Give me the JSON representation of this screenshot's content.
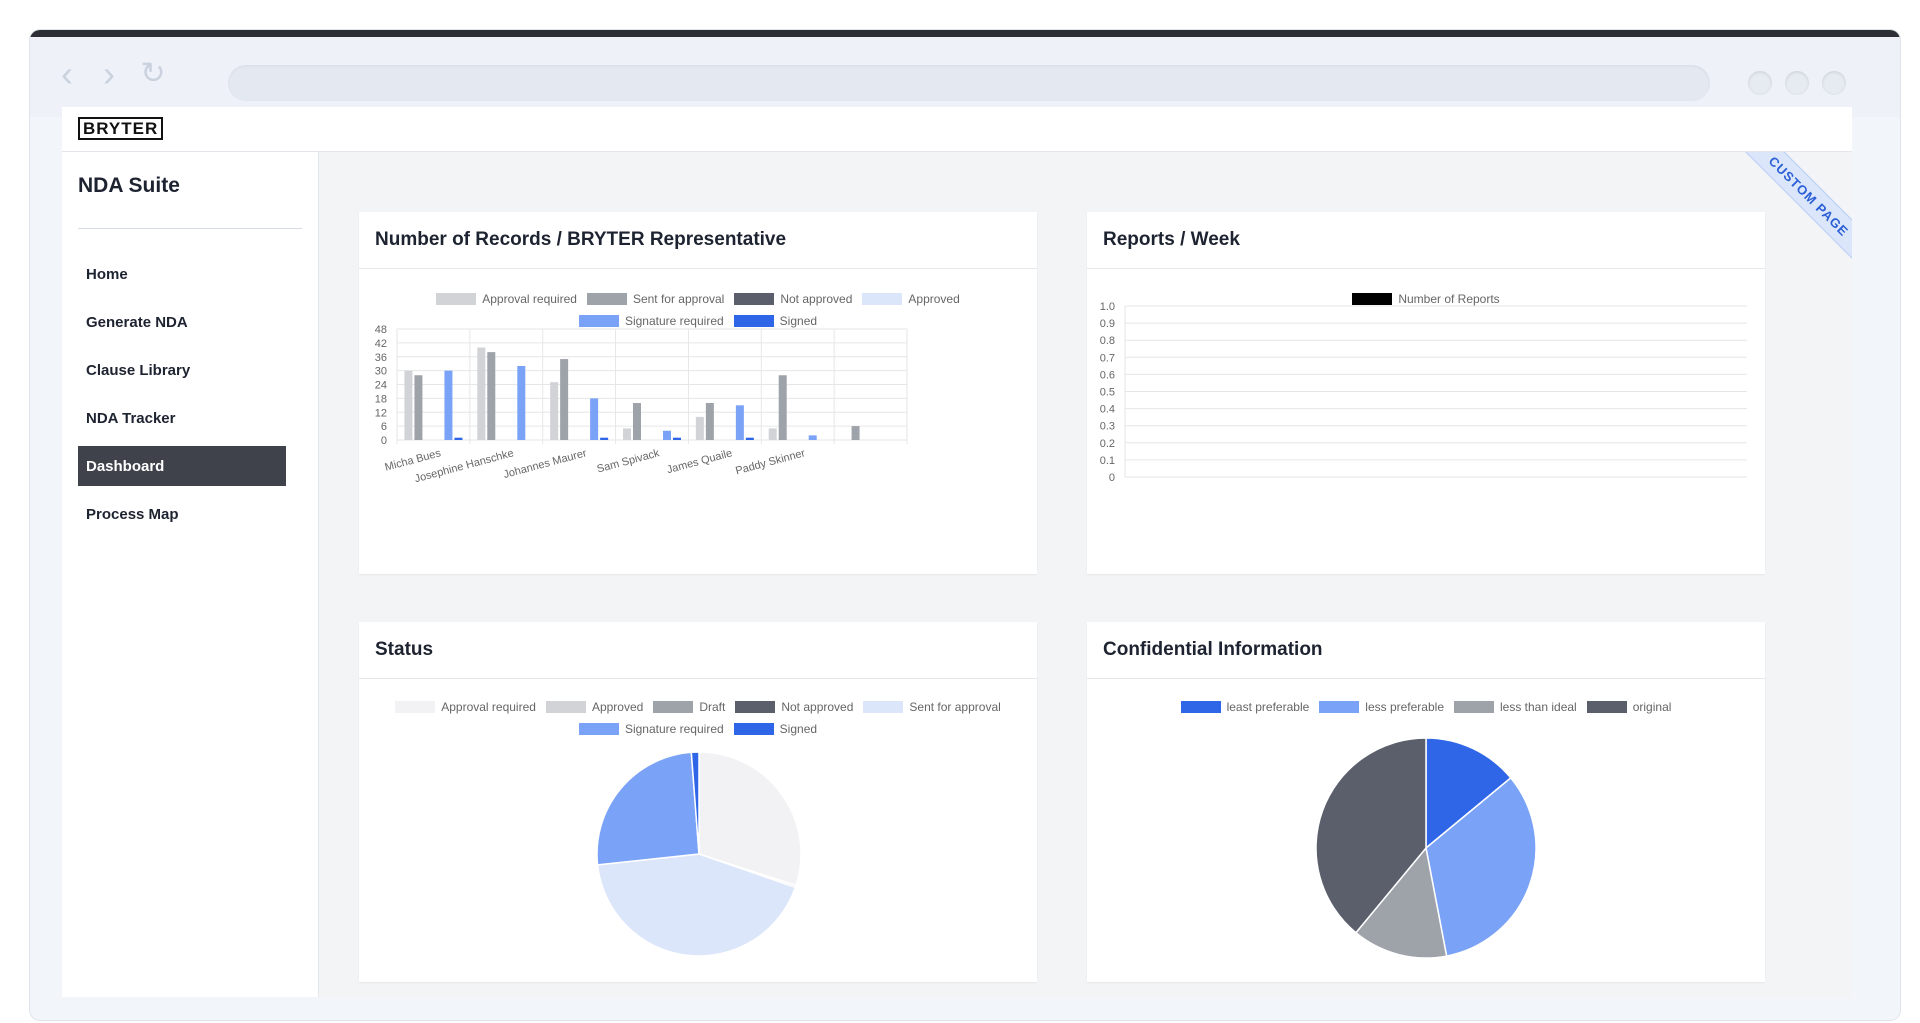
{
  "app": {
    "logo": "BRYTER",
    "suite_title": "NDA Suite",
    "ribbon": "CUSTOM PAGE"
  },
  "sidebar": {
    "items": [
      {
        "label": "Home",
        "active": false
      },
      {
        "label": "Generate NDA",
        "active": false
      },
      {
        "label": "Clause Library",
        "active": false
      },
      {
        "label": "NDA Tracker",
        "active": false
      },
      {
        "label": "Dashboard",
        "active": true
      },
      {
        "label": "Process Map",
        "active": false
      }
    ]
  },
  "cards": {
    "records": {
      "title": "Number of Records / BRYTER Representative"
    },
    "reports": {
      "title": "Reports / Week"
    },
    "status": {
      "title": "Status"
    },
    "confidential": {
      "title": "Confidential Information"
    }
  },
  "chart_data": [
    {
      "type": "bar",
      "categories": [
        "Micha Bues",
        "Josephine Hanschke",
        "Johannes Maurer",
        "Sam Spivack",
        "James Quaile",
        "Paddy Skinner",
        ""
      ],
      "series": [
        {
          "name": "Approval required",
          "color": "#d1d3d7",
          "values": [
            30,
            40,
            25,
            5,
            10,
            5,
            0
          ]
        },
        {
          "name": "Sent for approval",
          "color": "#9ea2a9",
          "values": [
            28,
            38,
            35,
            16,
            16,
            28,
            6
          ]
        },
        {
          "name": "Not approved",
          "color": "#5a5f6b",
          "values": [
            0,
            0,
            0,
            0,
            0,
            0,
            0
          ]
        },
        {
          "name": "Approved",
          "color": "#dce6fb",
          "values": [
            0,
            0,
            0,
            0,
            0,
            0,
            0
          ]
        },
        {
          "name": "Signature required",
          "color": "#7aa2f7",
          "values": [
            30,
            32,
            18,
            4,
            15,
            2,
            0
          ]
        },
        {
          "name": "Signed",
          "color": "#2f66e8",
          "values": [
            1,
            0,
            1,
            1,
            1,
            0,
            0
          ]
        }
      ],
      "yticks": [
        0,
        6,
        12,
        18,
        24,
        30,
        36,
        42,
        48
      ],
      "ylim": [
        0,
        48
      ],
      "grid": true,
      "legend": "top"
    },
    {
      "type": "line",
      "series": [
        {
          "name": "Number of Reports",
          "color": "#000000",
          "values": []
        }
      ],
      "yticks": [
        "0",
        "0.1",
        "0.2",
        "0.3",
        "0.4",
        "0.5",
        "0.6",
        "0.7",
        "0.8",
        "0.9",
        "1.0"
      ],
      "ylim": [
        0,
        1
      ],
      "grid": true,
      "legend": "top"
    },
    {
      "type": "pie",
      "labels": [
        "Approval required",
        "Approved",
        "Draft",
        "Not approved",
        "Sent for approval",
        "Signature required",
        "Signed"
      ],
      "colors": [
        "#f2f2f4",
        "#d1d3d7",
        "#9ea2a9",
        "#5a5f6b",
        "#dce6fb",
        "#7aa2f7",
        "#2f66e8"
      ],
      "values": [
        30,
        0.3,
        0,
        0,
        43,
        25.5,
        1.2
      ],
      "legend": "top"
    },
    {
      "type": "pie",
      "labels": [
        "least preferable",
        "less preferable",
        "less than ideal",
        "original"
      ],
      "colors": [
        "#2f66e8",
        "#7aa2f7",
        "#9ea2a9",
        "#5a5f6b"
      ],
      "values": [
        14,
        33,
        14,
        39
      ],
      "legend": "top"
    }
  ]
}
